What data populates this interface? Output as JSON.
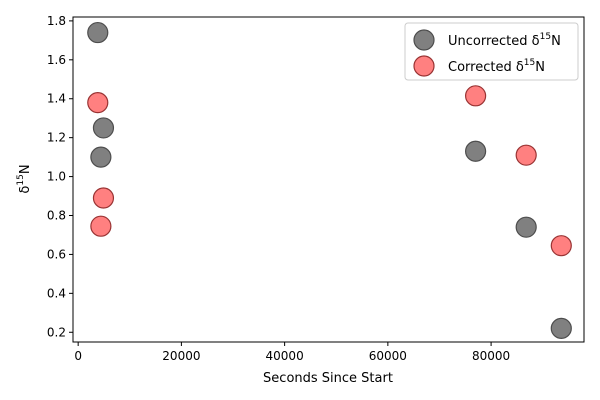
{
  "chart_data": {
    "type": "scatter",
    "title": "",
    "xlabel": "Seconds Since Start",
    "ylabel": {
      "base": "δ",
      "sup": "15",
      "tail": "N"
    },
    "xlim": [
      -1000,
      98000
    ],
    "ylim": [
      0.15,
      1.82
    ],
    "xticks": [
      0,
      20000,
      40000,
      60000,
      80000
    ],
    "xtick_labels": [
      "0",
      "20000",
      "40000",
      "60000",
      "80000"
    ],
    "yticks": [
      0.2,
      0.4,
      0.6,
      0.8,
      1.0,
      1.2,
      1.4,
      1.6,
      1.8
    ],
    "ytick_labels": [
      "0.2",
      "0.4",
      "0.6",
      "0.8",
      "1.0",
      "1.2",
      "1.4",
      "1.6",
      "1.8"
    ],
    "grid": false,
    "legend_position": "top-right",
    "series": [
      {
        "name": {
          "base": "Uncorrected δ",
          "sup": "15",
          "tail": "N"
        },
        "color": "#808080",
        "points": [
          {
            "x": 3800,
            "y": 1.74
          },
          {
            "x": 4900,
            "y": 1.25
          },
          {
            "x": 4400,
            "y": 1.1
          },
          {
            "x": 77000,
            "y": 1.13
          },
          {
            "x": 86800,
            "y": 0.74
          },
          {
            "x": 93600,
            "y": 0.22
          }
        ]
      },
      {
        "name": {
          "base": "Corrected δ",
          "sup": "15",
          "tail": "N"
        },
        "color": "#ff8080",
        "points": [
          {
            "x": 3800,
            "y": 1.38
          },
          {
            "x": 4900,
            "y": 0.89
          },
          {
            "x": 4400,
            "y": 0.745
          },
          {
            "x": 77000,
            "y": 1.415
          },
          {
            "x": 86800,
            "y": 1.11
          },
          {
            "x": 93600,
            "y": 0.645
          }
        ]
      }
    ]
  }
}
